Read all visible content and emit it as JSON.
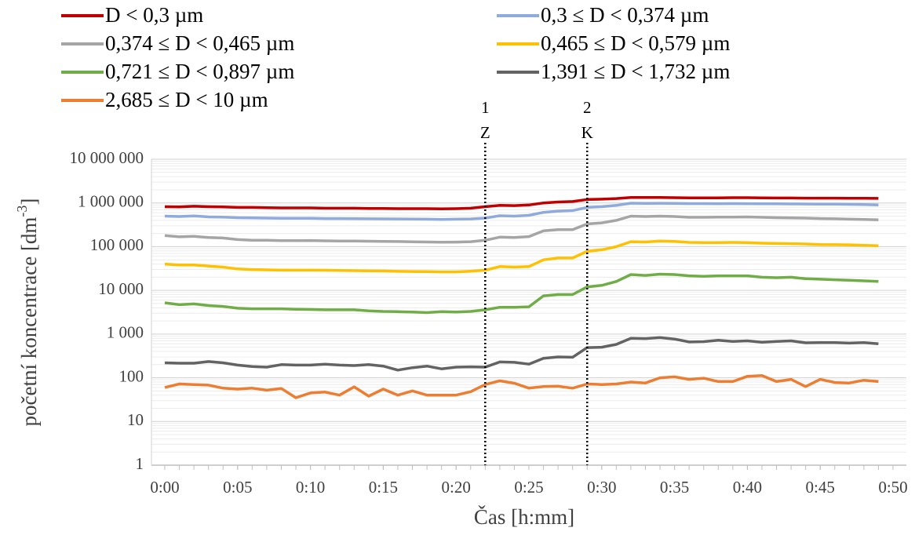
{
  "chart_data": {
    "type": "line",
    "x_label": "Čas [h:mm]",
    "y_label": {
      "text": "početní koncentrace [dm",
      "superscript": "-3",
      "suffix": "]"
    },
    "log_y": true,
    "grid": true,
    "minor_grid": true,
    "xlim": [
      0,
      50
    ],
    "ylim": [
      1,
      10000000
    ],
    "xticks": [
      {
        "value": 0,
        "label": "0:00"
      },
      {
        "value": 5,
        "label": "0:05"
      },
      {
        "value": 10,
        "label": "0:10"
      },
      {
        "value": 15,
        "label": "0:15"
      },
      {
        "value": 20,
        "label": "0:20"
      },
      {
        "value": 25,
        "label": "0:25"
      },
      {
        "value": 30,
        "label": "0:30"
      },
      {
        "value": 35,
        "label": "0:35"
      },
      {
        "value": 40,
        "label": "0:40"
      },
      {
        "value": 45,
        "label": "0:45"
      },
      {
        "value": 50,
        "label": "0:50"
      }
    ],
    "yticks": [
      1,
      10,
      100,
      {
        "value": 1000,
        "label": "1 000"
      },
      {
        "value": 10000,
        "label": "10 000"
      },
      {
        "value": 100000,
        "label": "100 000"
      },
      {
        "value": 1000000,
        "label": "1 000 000"
      },
      {
        "value": 10000000,
        "label": "10 000 000"
      }
    ],
    "annotations": [
      {
        "x": 22,
        "lines": [
          "1",
          "Z"
        ]
      },
      {
        "x": 29,
        "lines": [
          "2",
          "K"
        ]
      }
    ],
    "x": [
      0,
      1,
      2,
      3,
      4,
      5,
      6,
      7,
      8,
      9,
      10,
      11,
      12,
      13,
      14,
      15,
      16,
      17,
      18,
      19,
      20,
      21,
      22,
      23,
      24,
      25,
      26,
      27,
      28,
      29,
      30,
      31,
      32,
      33,
      34,
      35,
      36,
      37,
      38,
      39,
      40,
      41,
      42,
      43,
      44,
      45,
      46,
      47,
      48,
      49
    ],
    "series": [
      {
        "name": "D < 0,3 µm",
        "color": "#c00000",
        "values": [
          820000,
          810000,
          840000,
          820000,
          810000,
          790000,
          790000,
          780000,
          770000,
          770000,
          770000,
          760000,
          760000,
          760000,
          750000,
          750000,
          740000,
          740000,
          740000,
          730000,
          740000,
          760000,
          820000,
          880000,
          870000,
          900000,
          1000000,
          1050000,
          1080000,
          1200000,
          1220000,
          1260000,
          1330000,
          1330000,
          1330000,
          1320000,
          1310000,
          1310000,
          1310000,
          1320000,
          1320000,
          1310000,
          1300000,
          1300000,
          1290000,
          1290000,
          1290000,
          1280000,
          1280000,
          1270000
        ]
      },
      {
        "name": "0,3 ≤ D < 0,374 µm",
        "color": "#8faadc",
        "values": [
          500000,
          490000,
          505000,
          480000,
          475000,
          460000,
          455000,
          450000,
          445000,
          445000,
          445000,
          440000,
          440000,
          438000,
          435000,
          433000,
          430000,
          428000,
          425000,
          420000,
          425000,
          430000,
          450000,
          510000,
          500000,
          520000,
          610000,
          650000,
          670000,
          790000,
          820000,
          880000,
          990000,
          980000,
          985000,
          975000,
          970000,
          970000,
          965000,
          970000,
          965000,
          960000,
          955000,
          950000,
          945000,
          940000,
          935000,
          930000,
          920000,
          900000
        ]
      },
      {
        "name": "0,374 ≤ D < 0,465 µm",
        "color": "#a5a5a5",
        "values": [
          180000,
          168000,
          172000,
          162000,
          158000,
          145000,
          140000,
          140000,
          137000,
          137000,
          138000,
          136000,
          135000,
          135000,
          133000,
          132000,
          131000,
          129000,
          128000,
          126000,
          127000,
          130000,
          140000,
          165000,
          162000,
          170000,
          230000,
          245000,
          245000,
          330000,
          350000,
          400000,
          500000,
          490000,
          500000,
          490000,
          470000,
          470000,
          475000,
          475000,
          480000,
          470000,
          460000,
          455000,
          450000,
          440000,
          435000,
          425000,
          420000,
          410000
        ]
      },
      {
        "name": "0,465 ≤ D < 0,579 µm",
        "color": "#ffc000",
        "values": [
          40000,
          38000,
          38000,
          36000,
          34000,
          31000,
          30000,
          29500,
          29000,
          29000,
          29000,
          28800,
          28500,
          28300,
          28000,
          27800,
          27200,
          27000,
          26800,
          26500,
          26500,
          27500,
          29000,
          35000,
          34000,
          35000,
          50000,
          55000,
          55000,
          78000,
          85000,
          100000,
          130000,
          128000,
          135000,
          132000,
          125000,
          124000,
          124000,
          125000,
          124000,
          120000,
          118000,
          117000,
          115000,
          112000,
          111000,
          110000,
          107000,
          105000
        ]
      },
      {
        "name": "0,721 ≤ D < 0,897 µm",
        "color": "#70ad47",
        "values": [
          5200,
          4700,
          4900,
          4500,
          4300,
          3900,
          3800,
          3800,
          3800,
          3700,
          3650,
          3600,
          3600,
          3600,
          3400,
          3300,
          3250,
          3200,
          3100,
          3250,
          3200,
          3300,
          3600,
          4100,
          4100,
          4200,
          7500,
          8000,
          8000,
          12000,
          13000,
          16000,
          23000,
          22000,
          23500,
          23000,
          21500,
          21000,
          21500,
          21500,
          21500,
          20000,
          19500,
          20000,
          18500,
          18000,
          17500,
          17000,
          16500,
          16000
        ]
      },
      {
        "name": "1,391 ≤ D < 1,732 µm",
        "color": "#636363",
        "values": [
          220,
          215,
          215,
          235,
          220,
          195,
          180,
          175,
          200,
          195,
          195,
          205,
          195,
          190,
          200,
          185,
          150,
          170,
          185,
          160,
          175,
          178,
          175,
          230,
          225,
          205,
          280,
          300,
          295,
          490,
          500,
          580,
          800,
          790,
          830,
          770,
          660,
          670,
          720,
          680,
          700,
          650,
          680,
          700,
          630,
          640,
          640,
          620,
          640,
          600
        ]
      },
      {
        "name": "2,685 ≤ D < 10 µm",
        "color": "#ed7d31",
        "values": [
          60,
          72,
          70,
          68,
          58,
          55,
          58,
          52,
          57,
          35,
          45,
          47,
          40,
          62,
          38,
          55,
          40,
          50,
          40,
          40,
          40,
          48,
          70,
          85,
          75,
          58,
          63,
          64,
          58,
          72,
          70,
          72,
          80,
          76,
          100,
          105,
          92,
          98,
          82,
          82,
          108,
          112,
          82,
          92,
          63,
          92,
          78,
          76,
          88,
          82
        ]
      }
    ]
  }
}
